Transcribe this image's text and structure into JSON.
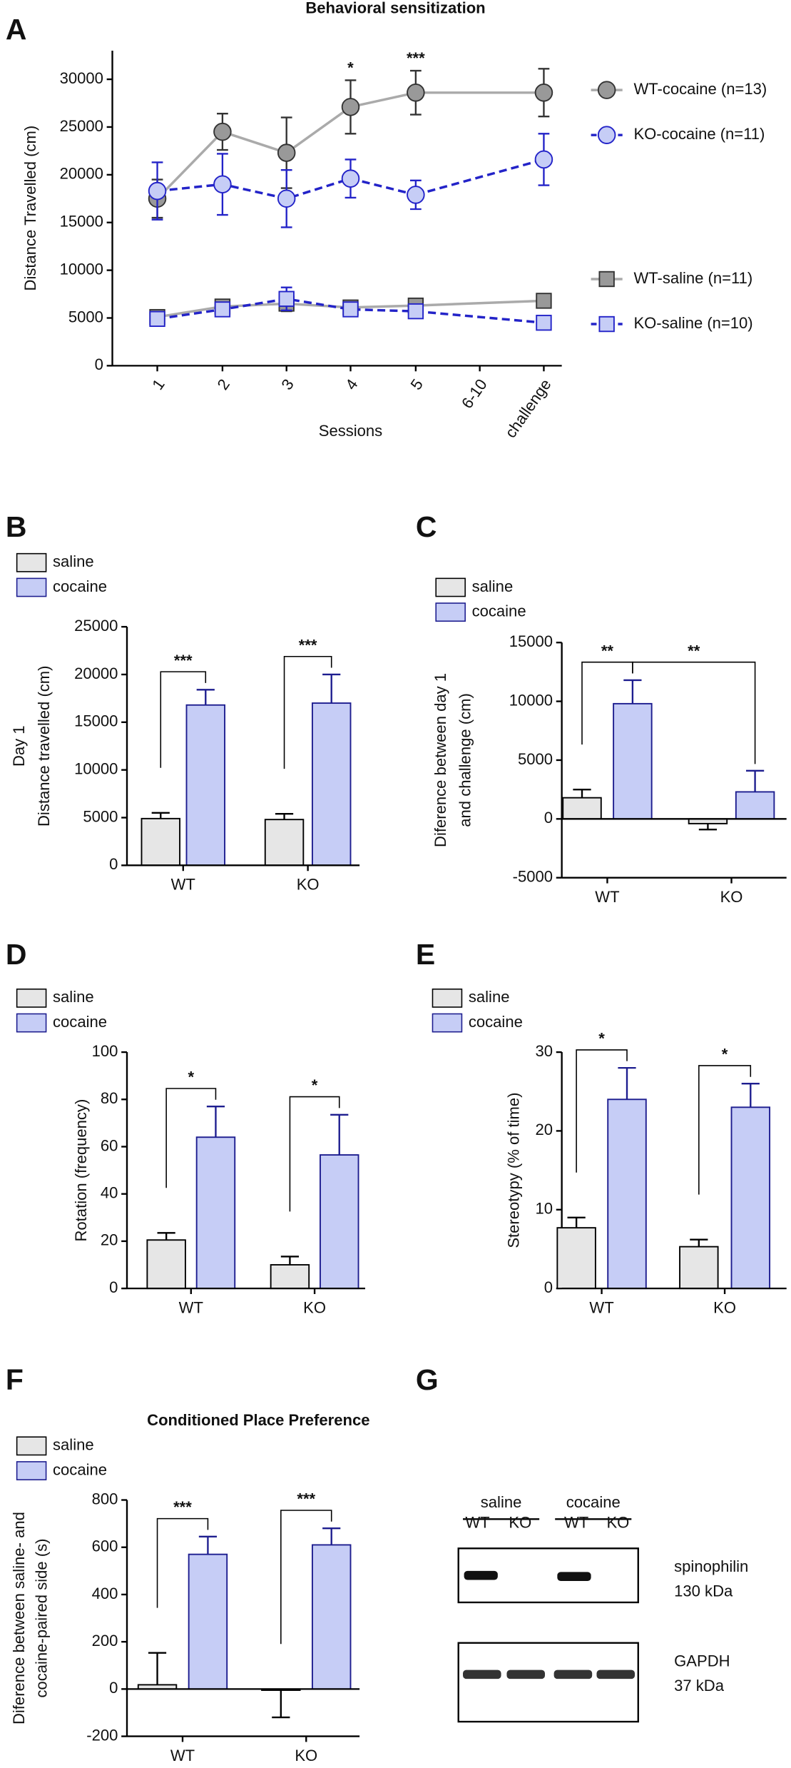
{
  "chart_data": [
    {
      "type": "line",
      "label": "A",
      "title": "Behavioral sensitization",
      "xlabel": "Sessions",
      "ylabel": "Distance Travelled (cm)",
      "categories": [
        "1",
        "2",
        "3",
        "4",
        "5",
        "6-10",
        "challenge"
      ],
      "ylim": [
        0,
        33000
      ],
      "yticks": [
        0,
        5000,
        10000,
        15000,
        20000,
        25000,
        30000
      ],
      "series": [
        {
          "name": "WT-cocaine (n=13)",
          "color": "#999999",
          "line_color": "#aaaaaa",
          "edge_color": "#333333",
          "marker": "circle",
          "linestyle": "solid",
          "values": [
            17500,
            24500,
            22300,
            27100,
            28600,
            null,
            28600
          ],
          "errors": [
            2000,
            1900,
            3700,
            2800,
            2300,
            null,
            2500
          ]
        },
        {
          "name": "KO-cocaine (n=11)",
          "color": "#c6cdf6",
          "line_color": "#2323c8",
          "edge_color": "#2323c8",
          "marker": "circle",
          "linestyle": "dashed",
          "values": [
            18300,
            19000,
            17500,
            19600,
            17900,
            null,
            21600
          ],
          "errors": [
            3000,
            3200,
            3000,
            2000,
            1500,
            null,
            2700
          ]
        },
        {
          "name": "WT-saline (n=11)",
          "color": "#999999",
          "line_color": "#aaaaaa",
          "edge_color": "#333333",
          "marker": "square",
          "linestyle": "solid",
          "values": [
            5100,
            6200,
            6500,
            6100,
            6300,
            null,
            6800
          ],
          "errors": [
            300,
            300,
            800,
            400,
            300,
            null,
            300
          ]
        },
        {
          "name": "KO-saline (n=10)",
          "color": "#c6cdf6",
          "line_color": "#2323c8",
          "edge_color": "#2323c8",
          "marker": "square",
          "linestyle": "dashed",
          "values": [
            4900,
            5900,
            7000,
            5900,
            5700,
            null,
            4500
          ],
          "errors": [
            300,
            300,
            1200,
            400,
            600,
            null,
            300
          ]
        }
      ],
      "annotations": [
        "*",
        "***"
      ]
    },
    {
      "type": "bar",
      "label": "B",
      "ylabel": [
        "Day 1",
        "Distance travelled (cm)"
      ],
      "categories": [
        "WT",
        "KO"
      ],
      "ylim": [
        0,
        25000
      ],
      "yticks": [
        0,
        5000,
        10000,
        15000,
        20000,
        25000
      ],
      "series": [
        {
          "name": "saline",
          "color": "#e6e6e6",
          "edge_color": "#000000",
          "values": [
            4900,
            4800
          ],
          "errors": [
            600,
            600
          ]
        },
        {
          "name": "cocaine",
          "color": "#c6cdf6",
          "edge_color": "#1d1d8f",
          "values": [
            16800,
            17000
          ],
          "errors": [
            1600,
            3000
          ]
        }
      ],
      "annotations": [
        "***",
        "***"
      ]
    },
    {
      "type": "bar",
      "label": "C",
      "ylabel": [
        "Diference between day 1",
        "and challenge (cm)"
      ],
      "categories": [
        "WT",
        "KO"
      ],
      "ylim": [
        -5000,
        15000
      ],
      "yticks": [
        -5000,
        0,
        5000,
        10000,
        15000
      ],
      "series": [
        {
          "name": "saline",
          "color": "#e6e6e6",
          "edge_color": "#000000",
          "values": [
            1800,
            -400
          ],
          "errors": [
            700,
            500
          ]
        },
        {
          "name": "cocaine",
          "color": "#c6cdf6",
          "edge_color": "#1d1d8f",
          "values": [
            9800,
            2300
          ],
          "errors": [
            2000,
            1800
          ]
        }
      ],
      "annotations": [
        "**",
        "**"
      ]
    },
    {
      "type": "bar",
      "label": "D",
      "ylabel": [
        "Rotation (frequency)"
      ],
      "categories": [
        "WT",
        "KO"
      ],
      "ylim": [
        0,
        100
      ],
      "yticks": [
        0,
        20,
        40,
        60,
        80,
        100
      ],
      "series": [
        {
          "name": "saline",
          "color": "#e6e6e6",
          "edge_color": "#000000",
          "values": [
            20.5,
            10
          ],
          "errors": [
            3,
            3.5
          ]
        },
        {
          "name": "cocaine",
          "color": "#c6cdf6",
          "edge_color": "#1d1d8f",
          "values": [
            64,
            56.5
          ],
          "errors": [
            13,
            17
          ]
        }
      ],
      "annotations": [
        "*",
        "*"
      ]
    },
    {
      "type": "bar",
      "label": "E",
      "ylabel": [
        "Stereotypy (% of time)"
      ],
      "categories": [
        "WT",
        "KO"
      ],
      "ylim": [
        0,
        30
      ],
      "yticks": [
        0,
        10,
        20,
        30
      ],
      "series": [
        {
          "name": "saline",
          "color": "#e6e6e6",
          "edge_color": "#000000",
          "values": [
            7.7,
            5.3
          ],
          "errors": [
            1.3,
            0.9
          ]
        },
        {
          "name": "cocaine",
          "color": "#c6cdf6",
          "edge_color": "#1d1d8f",
          "values": [
            24,
            23
          ],
          "errors": [
            4,
            3
          ]
        }
      ],
      "annotations": [
        "*",
        "*"
      ]
    },
    {
      "type": "bar",
      "label": "F",
      "title": "Conditioned Place Preference",
      "ylabel": [
        "Diference between saline- and",
        "cocaine-paired side (s)"
      ],
      "categories": [
        "WT",
        "KO"
      ],
      "ylim": [
        -200,
        800
      ],
      "yticks": [
        -200,
        0,
        200,
        400,
        600,
        800
      ],
      "series": [
        {
          "name": "saline",
          "color": "#e6e6e6",
          "edge_color": "#000000",
          "values": [
            18,
            -5
          ],
          "errors": [
            135,
            115
          ]
        },
        {
          "name": "cocaine",
          "color": "#c6cdf6",
          "edge_color": "#1d1d8f",
          "values": [
            570,
            610
          ],
          "errors": [
            75,
            70
          ]
        }
      ],
      "annotations": [
        "***",
        "***"
      ]
    }
  ],
  "blot": {
    "label": "G",
    "groups": [
      "saline",
      "cocaine"
    ],
    "lanes": [
      "WT",
      "KO",
      "WT",
      "KO"
    ],
    "rows": [
      [
        "spinophilin",
        "130 kDa"
      ],
      [
        "GAPDH",
        "37 kDa"
      ]
    ]
  }
}
